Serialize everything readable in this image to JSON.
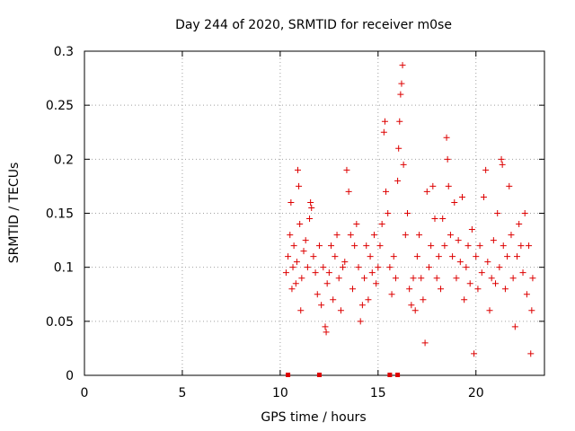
{
  "chart_data": {
    "type": "scatter",
    "title": "Day 244 of 2020, SRMTID for receiver m0se",
    "xlabel": "GPS time / hours",
    "ylabel": "SRMTID / TECUs",
    "xlim": [
      0,
      23.5
    ],
    "ylim": [
      0,
      0.3
    ],
    "x_ticks": [
      0,
      5,
      10,
      15,
      20
    ],
    "y_ticks": [
      0,
      0.05,
      0.1,
      0.15,
      0.2,
      0.25,
      0.3
    ],
    "x_tick_labels": [
      "0",
      "5",
      "10",
      "15",
      "20"
    ],
    "y_tick_labels": [
      "0",
      "0.05",
      "0.1",
      "0.15",
      "0.2",
      "0.25",
      "0.3"
    ],
    "grid": true,
    "marker": "+",
    "color": "#dd0000",
    "baseline_markers_x": [
      10.4,
      12.0,
      15.6,
      16.0
    ],
    "series": [
      {
        "name": "SRMTID",
        "points": [
          [
            10.3,
            0.095
          ],
          [
            10.4,
            0.11
          ],
          [
            10.5,
            0.13
          ],
          [
            10.55,
            0.16
          ],
          [
            10.6,
            0.08
          ],
          [
            10.65,
            0.1
          ],
          [
            10.7,
            0.12
          ],
          [
            10.8,
            0.085
          ],
          [
            10.85,
            0.105
          ],
          [
            10.9,
            0.19
          ],
          [
            10.95,
            0.175
          ],
          [
            11.0,
            0.14
          ],
          [
            11.05,
            0.06
          ],
          [
            11.1,
            0.09
          ],
          [
            11.2,
            0.115
          ],
          [
            11.3,
            0.125
          ],
          [
            11.4,
            0.1
          ],
          [
            11.5,
            0.145
          ],
          [
            11.55,
            0.16
          ],
          [
            11.6,
            0.155
          ],
          [
            11.7,
            0.11
          ],
          [
            11.8,
            0.095
          ],
          [
            11.9,
            0.075
          ],
          [
            12.0,
            0.12
          ],
          [
            12.1,
            0.065
          ],
          [
            12.2,
            0.1
          ],
          [
            12.3,
            0.045
          ],
          [
            12.35,
            0.04
          ],
          [
            12.4,
            0.085
          ],
          [
            12.5,
            0.095
          ],
          [
            12.6,
            0.12
          ],
          [
            12.7,
            0.07
          ],
          [
            12.8,
            0.11
          ],
          [
            12.9,
            0.13
          ],
          [
            13.0,
            0.09
          ],
          [
            13.1,
            0.06
          ],
          [
            13.2,
            0.1
          ],
          [
            13.3,
            0.105
          ],
          [
            13.4,
            0.19
          ],
          [
            13.5,
            0.17
          ],
          [
            13.6,
            0.13
          ],
          [
            13.7,
            0.08
          ],
          [
            13.8,
            0.12
          ],
          [
            13.9,
            0.14
          ],
          [
            14.0,
            0.1
          ],
          [
            14.1,
            0.05
          ],
          [
            14.2,
            0.065
          ],
          [
            14.3,
            0.09
          ],
          [
            14.4,
            0.12
          ],
          [
            14.5,
            0.07
          ],
          [
            14.6,
            0.11
          ],
          [
            14.7,
            0.095
          ],
          [
            14.8,
            0.13
          ],
          [
            14.9,
            0.085
          ],
          [
            15.0,
            0.1
          ],
          [
            15.1,
            0.12
          ],
          [
            15.2,
            0.14
          ],
          [
            15.3,
            0.225
          ],
          [
            15.35,
            0.235
          ],
          [
            15.4,
            0.17
          ],
          [
            15.5,
            0.15
          ],
          [
            15.6,
            0.1
          ],
          [
            15.7,
            0.075
          ],
          [
            15.8,
            0.11
          ],
          [
            15.9,
            0.09
          ],
          [
            16.0,
            0.18
          ],
          [
            16.05,
            0.21
          ],
          [
            16.1,
            0.235
          ],
          [
            16.15,
            0.26
          ],
          [
            16.2,
            0.27
          ],
          [
            16.25,
            0.287
          ],
          [
            16.3,
            0.195
          ],
          [
            16.4,
            0.13
          ],
          [
            16.5,
            0.15
          ],
          [
            16.6,
            0.08
          ],
          [
            16.7,
            0.065
          ],
          [
            16.8,
            0.09
          ],
          [
            16.9,
            0.06
          ],
          [
            17.0,
            0.11
          ],
          [
            17.1,
            0.13
          ],
          [
            17.2,
            0.09
          ],
          [
            17.3,
            0.07
          ],
          [
            17.4,
            0.03
          ],
          [
            17.5,
            0.17
          ],
          [
            17.6,
            0.1
          ],
          [
            17.7,
            0.12
          ],
          [
            17.8,
            0.175
          ],
          [
            17.9,
            0.145
          ],
          [
            18.0,
            0.09
          ],
          [
            18.1,
            0.11
          ],
          [
            18.2,
            0.08
          ],
          [
            18.3,
            0.145
          ],
          [
            18.4,
            0.12
          ],
          [
            18.5,
            0.22
          ],
          [
            18.55,
            0.2
          ],
          [
            18.6,
            0.175
          ],
          [
            18.7,
            0.13
          ],
          [
            18.8,
            0.11
          ],
          [
            18.9,
            0.16
          ],
          [
            19.0,
            0.09
          ],
          [
            19.1,
            0.125
          ],
          [
            19.2,
            0.105
          ],
          [
            19.3,
            0.165
          ],
          [
            19.4,
            0.07
          ],
          [
            19.5,
            0.1
          ],
          [
            19.6,
            0.12
          ],
          [
            19.7,
            0.085
          ],
          [
            19.8,
            0.135
          ],
          [
            19.9,
            0.02
          ],
          [
            20.0,
            0.11
          ],
          [
            20.1,
            0.08
          ],
          [
            20.2,
            0.12
          ],
          [
            20.3,
            0.095
          ],
          [
            20.4,
            0.165
          ],
          [
            20.5,
            0.19
          ],
          [
            20.6,
            0.105
          ],
          [
            20.7,
            0.06
          ],
          [
            20.8,
            0.09
          ],
          [
            20.9,
            0.125
          ],
          [
            21.0,
            0.085
          ],
          [
            21.1,
            0.15
          ],
          [
            21.2,
            0.1
          ],
          [
            21.3,
            0.2
          ],
          [
            21.35,
            0.195
          ],
          [
            21.4,
            0.12
          ],
          [
            21.5,
            0.08
          ],
          [
            21.6,
            0.11
          ],
          [
            21.7,
            0.175
          ],
          [
            21.8,
            0.13
          ],
          [
            21.9,
            0.09
          ],
          [
            22.0,
            0.045
          ],
          [
            22.1,
            0.11
          ],
          [
            22.2,
            0.14
          ],
          [
            22.3,
            0.12
          ],
          [
            22.4,
            0.095
          ],
          [
            22.5,
            0.15
          ],
          [
            22.6,
            0.075
          ],
          [
            22.7,
            0.12
          ],
          [
            22.8,
            0.02
          ],
          [
            22.85,
            0.06
          ],
          [
            22.9,
            0.09
          ]
        ]
      }
    ]
  }
}
